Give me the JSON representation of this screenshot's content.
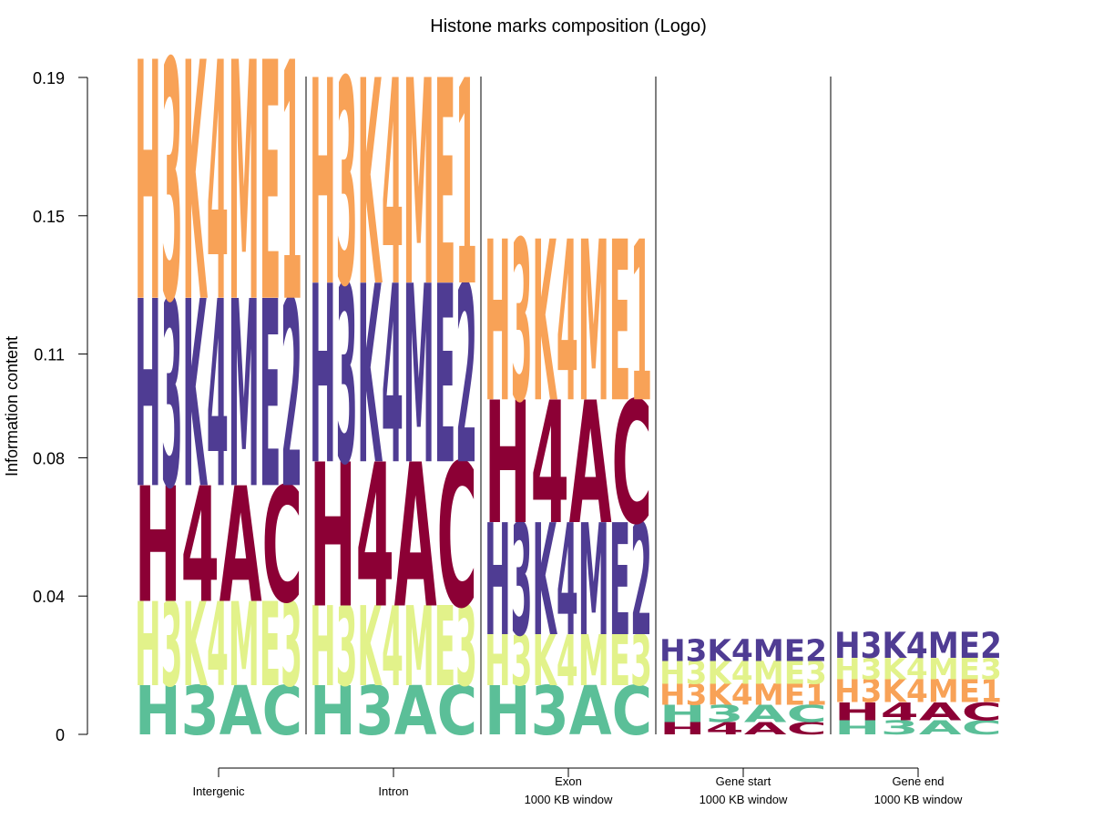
{
  "chart_data": {
    "type": "sequence-logo",
    "title": "Histone marks composition (Logo)",
    "ylabel": "Information content",
    "ylim": [
      0,
      0.19
    ],
    "yticks": [
      "0",
      "0.04",
      "0.08",
      "0.11",
      "0.15",
      "0.19"
    ],
    "ytick_values": [
      0,
      0.04,
      0.08,
      0.11,
      0.15,
      0.19
    ],
    "colors": {
      "H3AC": "#5bbf98",
      "H3K4ME3": "#e2f28a",
      "H4AC": "#8c0035",
      "H3K4ME2": "#4f3c93",
      "H3K4ME1": "#f8a257"
    },
    "positions": [
      {
        "label": "Intergenic",
        "sublabel": "",
        "stack": [
          {
            "mark": "H3AC",
            "value": 0.0142
          },
          {
            "mark": "H3K4ME3",
            "value": 0.0244
          },
          {
            "mark": "H4AC",
            "value": 0.0335
          },
          {
            "mark": "H3K4ME2",
            "value": 0.0542
          },
          {
            "mark": "H3K4ME1",
            "value": 0.0692
          }
        ]
      },
      {
        "label": "Intron",
        "sublabel": "",
        "stack": [
          {
            "mark": "H3AC",
            "value": 0.0142
          },
          {
            "mark": "H3K4ME3",
            "value": 0.0231
          },
          {
            "mark": "H4AC",
            "value": 0.0417
          },
          {
            "mark": "H3K4ME2",
            "value": 0.0517
          },
          {
            "mark": "H3K4ME1",
            "value": 0.0595
          }
        ]
      },
      {
        "label": "Exon",
        "sublabel": "1000 KB window",
        "stack": [
          {
            "mark": "H3AC",
            "value": 0.0142
          },
          {
            "mark": "H3K4ME3",
            "value": 0.0148
          },
          {
            "mark": "H3K4ME2",
            "value": 0.0324
          },
          {
            "mark": "H4AC",
            "value": 0.0355
          },
          {
            "mark": "H3K4ME1",
            "value": 0.0466
          }
        ]
      },
      {
        "label": "Gene start",
        "sublabel": "1000 KB window",
        "stack": [
          {
            "mark": "H4AC",
            "value": 0.0036
          },
          {
            "mark": "H3AC",
            "value": 0.0049
          },
          {
            "mark": "H3K4ME1",
            "value": 0.0061
          },
          {
            "mark": "H3K4ME3",
            "value": 0.0066
          },
          {
            "mark": "H3K4ME2",
            "value": 0.0063
          }
        ]
      },
      {
        "label": "Gene end",
        "sublabel": "1000 KB window",
        "stack": [
          {
            "mark": "H3AC",
            "value": 0.0041
          },
          {
            "mark": "H4AC",
            "value": 0.0052
          },
          {
            "mark": "H3K4ME1",
            "value": 0.0067
          },
          {
            "mark": "H3K4ME3",
            "value": 0.0061
          },
          {
            "mark": "H3K4ME2",
            "value": 0.0075
          }
        ]
      }
    ]
  }
}
